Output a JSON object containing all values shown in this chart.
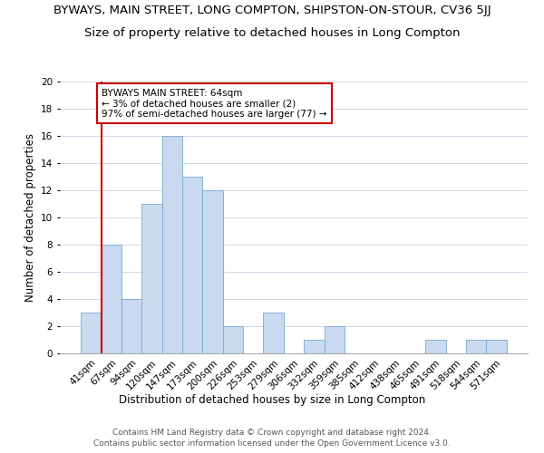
{
  "title": "BYWAYS, MAIN STREET, LONG COMPTON, SHIPSTON-ON-STOUR, CV36 5JJ",
  "subtitle": "Size of property relative to detached houses in Long Compton",
  "xlabel": "Distribution of detached houses by size in Long Compton",
  "ylabel": "Number of detached properties",
  "categories": [
    "41sqm",
    "67sqm",
    "94sqm",
    "120sqm",
    "147sqm",
    "173sqm",
    "200sqm",
    "226sqm",
    "253sqm",
    "279sqm",
    "306sqm",
    "332sqm",
    "359sqm",
    "385sqm",
    "412sqm",
    "438sqm",
    "465sqm",
    "491sqm",
    "518sqm",
    "544sqm",
    "571sqm"
  ],
  "values": [
    3,
    8,
    4,
    11,
    16,
    13,
    12,
    2,
    0,
    3,
    0,
    1,
    2,
    0,
    0,
    0,
    0,
    1,
    0,
    1,
    1
  ],
  "bar_color": "#c9d9f0",
  "bar_edge_color": "#7aaad0",
  "highlight_color": "#cc0000",
  "annotation_text": "BYWAYS MAIN STREET: 64sqm\n← 3% of detached houses are smaller (2)\n97% of semi-detached houses are larger (77) →",
  "annotation_box_color": "#ffffff",
  "annotation_box_edge": "#cc0000",
  "ylim": [
    0,
    20
  ],
  "yticks": [
    0,
    2,
    4,
    6,
    8,
    10,
    12,
    14,
    16,
    18,
    20
  ],
  "footer1": "Contains HM Land Registry data © Crown copyright and database right 2024.",
  "footer2": "Contains public sector information licensed under the Open Government Licence v3.0.",
  "title_fontsize": 9.5,
  "subtitle_fontsize": 9.5,
  "axis_label_fontsize": 8.5,
  "tick_fontsize": 7.5,
  "annotation_fontsize": 7.5,
  "footer_fontsize": 6.5,
  "background_color": "#ffffff",
  "grid_color": "#d0d8e8",
  "red_line_x": 1.5
}
